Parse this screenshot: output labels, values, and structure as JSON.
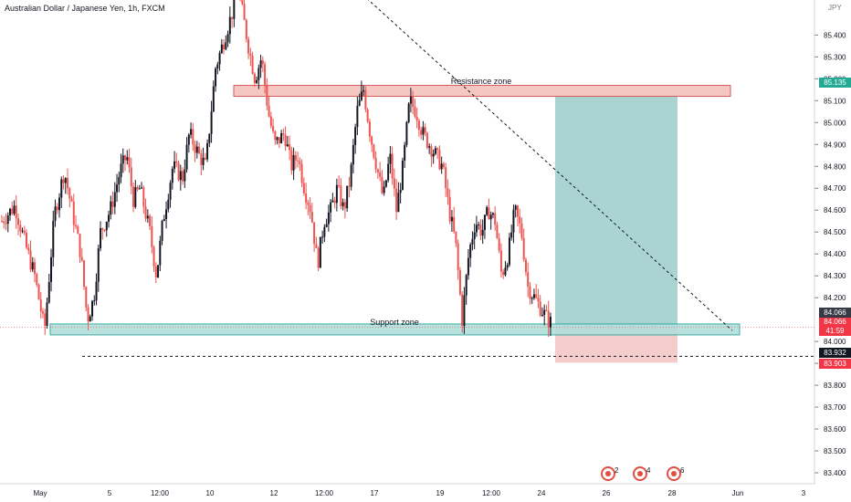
{
  "header": {
    "title": "Australian Dollar / Japanese Yen, 1h, FXCM",
    "currency": "JPY"
  },
  "zones": {
    "resistance_label": "Resistance zone",
    "support_label": "Support zone"
  },
  "price_tags": {
    "current": "85.135",
    "last_grey": "84.066",
    "last_red": "84.066",
    "countdown": "41:59",
    "stop_black": "83.932",
    "stop_red": "83.903"
  },
  "events": [
    {
      "label": "2"
    },
    {
      "label": "4"
    },
    {
      "label": "6"
    }
  ],
  "colors": {
    "up_candle": "#131722",
    "down_candle": "#ef5350",
    "resistance_fill": "#f4c7c3",
    "resistance_border": "#d35d5d",
    "support_fill": "#b2dfdb",
    "support_border": "#26a69a",
    "target_fill": "#8cc5c2",
    "stop_fill": "#f2c3c3",
    "trend_line": "#131722"
  },
  "chart_data": {
    "type": "candlestick",
    "symbol": "AUDJPY",
    "timeframe": "1h",
    "ylim": [
      83.35,
      85.56
    ],
    "y_ticks": [
      "85.400",
      "85.300",
      "85.200",
      "85.100",
      "85.000",
      "84.900",
      "84.800",
      "84.700",
      "84.600",
      "84.500",
      "84.400",
      "84.300",
      "84.200",
      "84.000",
      "83.900",
      "83.800",
      "83.700",
      "83.600",
      "83.500",
      "83.400"
    ],
    "x_ticks": [
      "May",
      "5",
      "12:00",
      "10",
      "12",
      "12:00",
      "17",
      "19",
      "12:00",
      "24",
      "26",
      "28",
      "Jun",
      "3"
    ],
    "price_path": [
      [
        0,
        84.55
      ],
      [
        4,
        84.62
      ],
      [
        7,
        84.45
      ],
      [
        10,
        84.3
      ],
      [
        13,
        84.05
      ],
      [
        16,
        84.58
      ],
      [
        19,
        84.78
      ],
      [
        22,
        84.55
      ],
      [
        24,
        84.4
      ],
      [
        26,
        84.1
      ],
      [
        28,
        84.2
      ],
      [
        30,
        84.5
      ],
      [
        33,
        84.6
      ],
      [
        36,
        84.78
      ],
      [
        38,
        84.85
      ],
      [
        40,
        84.65
      ],
      [
        42,
        84.7
      ],
      [
        45,
        84.5
      ],
      [
        47,
        84.3
      ],
      [
        49,
        84.55
      ],
      [
        52,
        84.8
      ],
      [
        55,
        84.75
      ],
      [
        57,
        84.95
      ],
      [
        60,
        84.85
      ],
      [
        62,
        84.8
      ],
      [
        65,
        85.25
      ],
      [
        68,
        85.4
      ],
      [
        70,
        85.5
      ],
      [
        72,
        85.6
      ],
      [
        75,
        85.35
      ],
      [
        77,
        85.2
      ],
      [
        79,
        85.3
      ],
      [
        81,
        85.05
      ],
      [
        83,
        84.9
      ],
      [
        86,
        84.95
      ],
      [
        88,
        84.8
      ],
      [
        90,
        84.85
      ],
      [
        92,
        84.7
      ],
      [
        94,
        84.6
      ],
      [
        96,
        84.35
      ],
      [
        98,
        84.55
      ],
      [
        100,
        84.6
      ],
      [
        102,
        84.7
      ],
      [
        104,
        84.6
      ],
      [
        106,
        84.75
      ],
      [
        108,
        85.05
      ],
      [
        110,
        85.15
      ],
      [
        112,
        84.95
      ],
      [
        114,
        84.8
      ],
      [
        116,
        84.65
      ],
      [
        118,
        84.85
      ],
      [
        120,
        84.6
      ],
      [
        122,
        84.8
      ],
      [
        124,
        85.1
      ],
      [
        126,
        85.05
      ],
      [
        128,
        84.95
      ],
      [
        130,
        84.9
      ],
      [
        132,
        84.85
      ],
      [
        134,
        84.8
      ],
      [
        136,
        84.6
      ],
      [
        138,
        84.45
      ],
      [
        140,
        84.1
      ],
      [
        142,
        84.4
      ],
      [
        144,
        84.55
      ],
      [
        146,
        84.5
      ],
      [
        148,
        84.6
      ],
      [
        150,
        84.55
      ],
      [
        152,
        84.3
      ],
      [
        154,
        84.4
      ],
      [
        156,
        84.6
      ],
      [
        158,
        84.5
      ],
      [
        160,
        84.25
      ],
      [
        162,
        84.2
      ],
      [
        164,
        84.15
      ],
      [
        166,
        84.1
      ],
      [
        168,
        84.07
      ]
    ],
    "resistance_zone": {
      "low": 85.12,
      "high": 85.17
    },
    "support_zone": {
      "low": 84.03,
      "high": 84.08
    },
    "position": {
      "entry": 84.066,
      "target": 85.135,
      "stop": 83.903
    },
    "stop_line": 83.932,
    "trend_line": {
      "from": 85.82,
      "to": 84.05
    }
  }
}
